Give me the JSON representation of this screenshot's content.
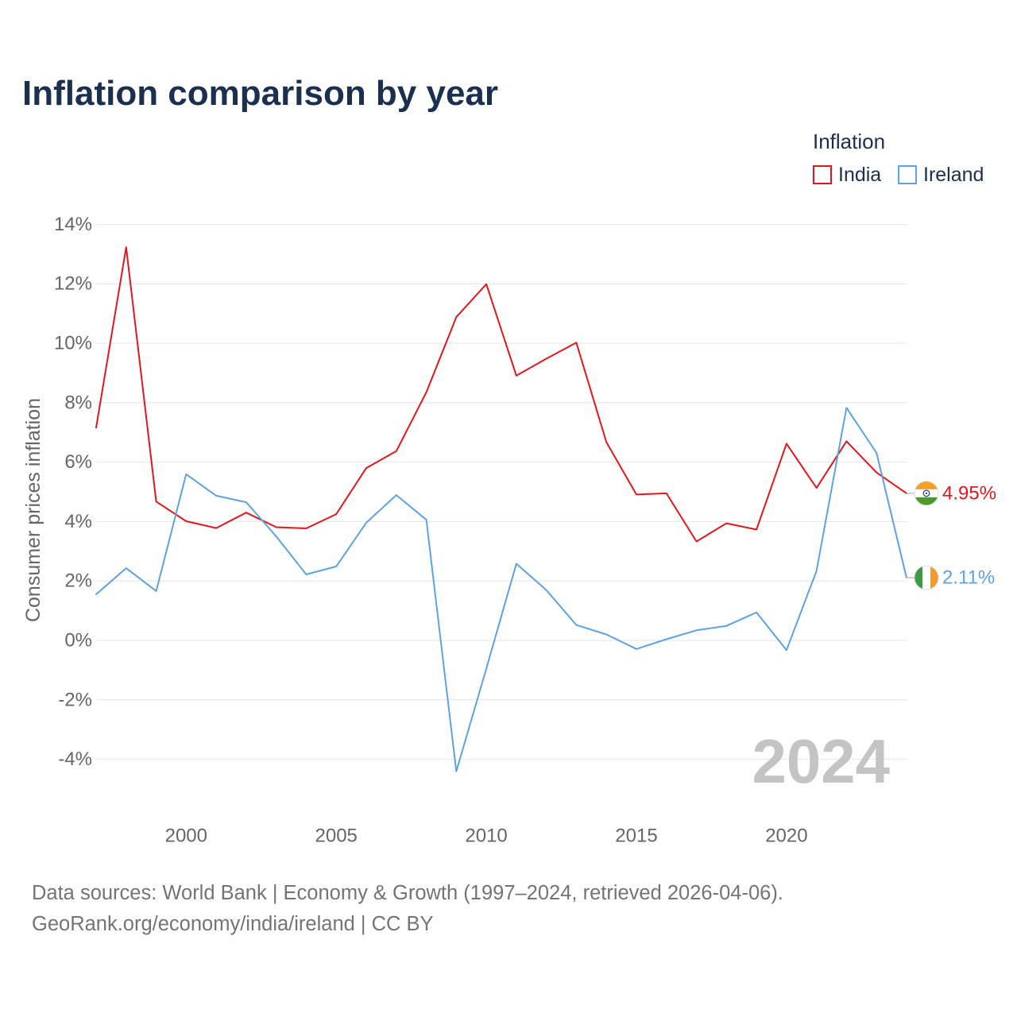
{
  "chart_data": {
    "type": "line",
    "title": "Inflation comparison by year",
    "ylabel": "Consumer prices inflation",
    "legend": {
      "title": "Inflation",
      "position": "top-right"
    },
    "grid": true,
    "x": [
      1997,
      1998,
      1999,
      2000,
      2001,
      2002,
      2003,
      2004,
      2005,
      2006,
      2007,
      2008,
      2009,
      2010,
      2011,
      2012,
      2013,
      2014,
      2015,
      2016,
      2017,
      2018,
      2019,
      2020,
      2021,
      2022,
      2023,
      2024
    ],
    "xlim": [
      1997,
      2024
    ],
    "ylim": [
      -6,
      14
    ],
    "x_ticks": [
      {
        "value": 2000,
        "label": "2000"
      },
      {
        "value": 2005,
        "label": "2005"
      },
      {
        "value": 2010,
        "label": "2010"
      },
      {
        "value": 2015,
        "label": "2015"
      },
      {
        "value": 2020,
        "label": "2020"
      }
    ],
    "y_ticks": [
      {
        "value": 14,
        "label": "14%"
      },
      {
        "value": 12,
        "label": "12%"
      },
      {
        "value": 10,
        "label": "10%"
      },
      {
        "value": 8,
        "label": "8%"
      },
      {
        "value": 6,
        "label": "6%"
      },
      {
        "value": 4,
        "label": "4%"
      },
      {
        "value": 2,
        "label": "2%"
      },
      {
        "value": 0,
        "label": "0%"
      },
      {
        "value": -2,
        "label": "-2%"
      },
      {
        "value": -4,
        "label": "-4%"
      }
    ],
    "year_label": "2024",
    "series": [
      {
        "name": "India",
        "color": "#e3161d",
        "values": [
          7.16,
          13.23,
          4.67,
          4.01,
          3.78,
          4.3,
          3.81,
          3.77,
          4.25,
          5.8,
          6.37,
          8.35,
          10.88,
          11.99,
          8.91,
          9.48,
          10.02,
          6.67,
          4.91,
          4.95,
          3.33,
          3.94,
          3.73,
          6.62,
          5.13,
          6.7,
          5.65,
          4.95
        ],
        "end_label": "4.95%",
        "flag_icon": "india-flag-icon"
      },
      {
        "name": "Ireland",
        "color": "#5ca3e4",
        "values": [
          1.55,
          2.43,
          1.66,
          5.59,
          4.87,
          4.65,
          3.5,
          2.22,
          2.49,
          3.96,
          4.89,
          4.06,
          -4.41,
          -0.95,
          2.58,
          1.69,
          0.52,
          0.2,
          -0.29,
          0.04,
          0.34,
          0.49,
          0.94,
          -0.33,
          2.34,
          7.83,
          6.31,
          2.11
        ],
        "end_label": "2.11%",
        "flag_icon": "ireland-flag-icon"
      }
    ]
  },
  "footer": {
    "sources": "Data sources: World Bank | Economy & Growth (1997–2024, retrieved 2026-04-06).",
    "attribution": "GeoRank.org/economy/india/ireland | CC BY"
  }
}
